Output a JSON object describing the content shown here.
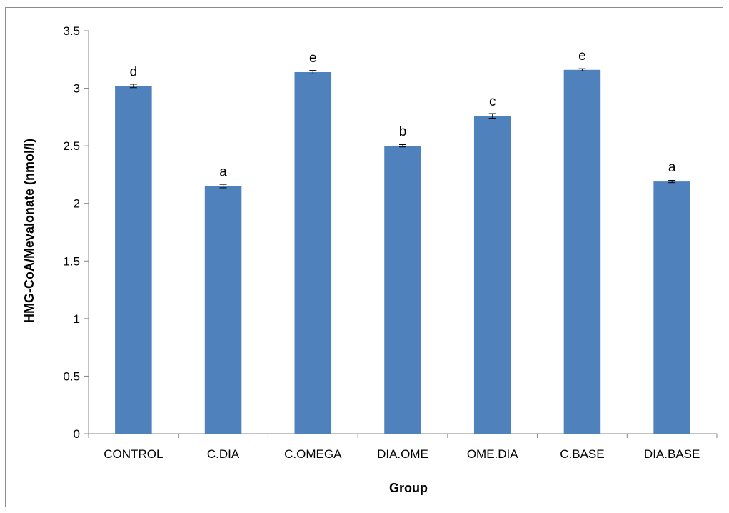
{
  "chart_data": {
    "type": "bar",
    "title": "",
    "xlabel": "Group",
    "ylabel": "HMG-CoA/Mevalonate (nmol/l)",
    "categories": [
      "CONTROL",
      "C.DIA",
      "C.OMEGA",
      "DIA.OME",
      "OME.DIA",
      "C.BASE",
      "DIA.BASE"
    ],
    "values": [
      3.02,
      2.15,
      3.14,
      2.5,
      2.76,
      3.16,
      2.19
    ],
    "error": [
      0.015,
      0.015,
      0.015,
      0.01,
      0.02,
      0.01,
      0.01
    ],
    "significance_labels": [
      "d",
      "a",
      "e",
      "b",
      "c",
      "e",
      "a"
    ],
    "ylim": [
      0,
      3.5
    ],
    "yticks": [
      "0",
      "0.5",
      "1",
      "1.5",
      "2",
      "2.5",
      "3",
      "3.5"
    ],
    "grid": false,
    "legend": "none",
    "colors": {
      "bar": "#4f81bd",
      "axis": "#868686",
      "frame": "#8c8c8c"
    }
  }
}
